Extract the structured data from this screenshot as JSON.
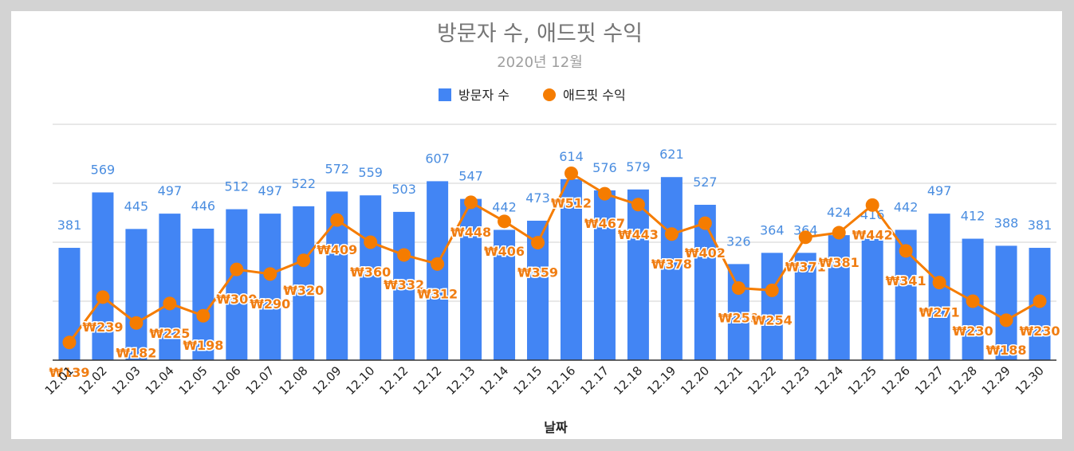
{
  "chart_data": {
    "type": "bar",
    "title": "방문자 수, 애드핏 수익",
    "subtitle": "2020년 12월",
    "xlabel": "날짜",
    "categories": [
      "12.01",
      "12.02",
      "12.03",
      "12.04",
      "12.05",
      "12.06",
      "12.07",
      "12.08",
      "12.09",
      "12.10",
      "12.12",
      "12.12",
      "12.13",
      "12.14",
      "12.15",
      "12.16",
      "12.17",
      "12.18",
      "12.19",
      "12.20",
      "12.21",
      "12.22",
      "12.23",
      "12.24",
      "12.25",
      "12.26",
      "12.27",
      "12.28",
      "12.29",
      "12.30"
    ],
    "series": [
      {
        "name": "방문자 수",
        "type": "bar",
        "color": "#4285f4",
        "label_color": "#4a8de0",
        "values": [
          381,
          569,
          445,
          497,
          446,
          512,
          497,
          522,
          572,
          559,
          503,
          607,
          547,
          442,
          473,
          614,
          576,
          579,
          621,
          527,
          326,
          364,
          364,
          424,
          416,
          442,
          497,
          412,
          388,
          381
        ],
        "labels": [
          "381",
          "569",
          "445",
          "497",
          "446",
          "512",
          "497",
          "522",
          "572",
          "559",
          "503",
          "607",
          "547",
          "442",
          "473",
          "614",
          "576",
          "579",
          "621",
          "527",
          "326",
          "364",
          "364",
          "424",
          "416",
          "442",
          "497",
          "412",
          "388",
          "381"
        ]
      },
      {
        "name": "애드핏 수익",
        "type": "line",
        "color": "#f57c00",
        "values": [
          139,
          239,
          182,
          225,
          198,
          300,
          290,
          320,
          409,
          360,
          332,
          312,
          448,
          406,
          359,
          512,
          467,
          443,
          378,
          402,
          259,
          254,
          371,
          381,
          442,
          341,
          271,
          230,
          188,
          230
        ],
        "labels": [
          "₩139",
          "₩239",
          "₩182",
          "₩225",
          "₩198",
          "₩300",
          "₩290",
          "₩320",
          "₩409",
          "₩360",
          "₩332",
          "₩312",
          "₩448",
          "₩406",
          "₩359",
          "₩512",
          "₩467",
          "₩443",
          "₩378",
          "₩402",
          "₩259",
          "₩254",
          "₩371",
          "₩381",
          "₩442",
          "₩341",
          "₩271",
          "₩230",
          "₩188",
          "₩230"
        ]
      }
    ],
    "y_left": [
      0,
      800
    ],
    "y_right": [
      100,
      620
    ],
    "grid": true,
    "legend": "top-center"
  }
}
